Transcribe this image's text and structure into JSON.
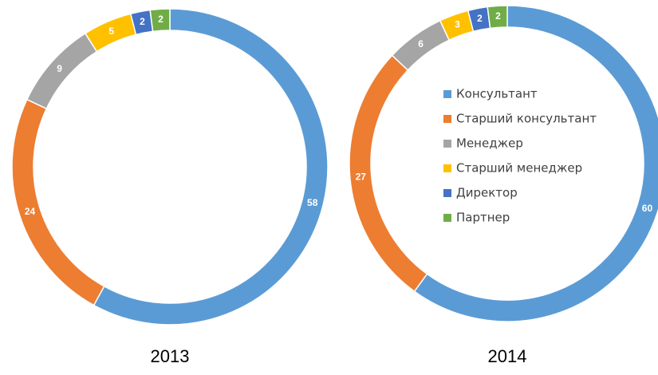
{
  "chart_data": [
    {
      "type": "donut",
      "title": "2013",
      "values": [
        58,
        24,
        9,
        5,
        2,
        2
      ],
      "colors": [
        "#5b9bd5",
        "#ed7d31",
        "#a5a5a5",
        "#ffc000",
        "#4472c4",
        "#70ad47"
      ]
    },
    {
      "type": "donut",
      "title": "2014",
      "categories": [
        "Консультант",
        "Старший консультант",
        "Менеджер",
        "Старший менеджер",
        "Директор",
        "Партнер"
      ],
      "values": [
        60,
        27,
        6,
        3,
        2,
        2
      ],
      "colors": [
        "#5b9bd5",
        "#ed7d31",
        "#a5a5a5",
        "#ffc000",
        "#4472c4",
        "#70ad47"
      ],
      "legend": "center"
    }
  ]
}
